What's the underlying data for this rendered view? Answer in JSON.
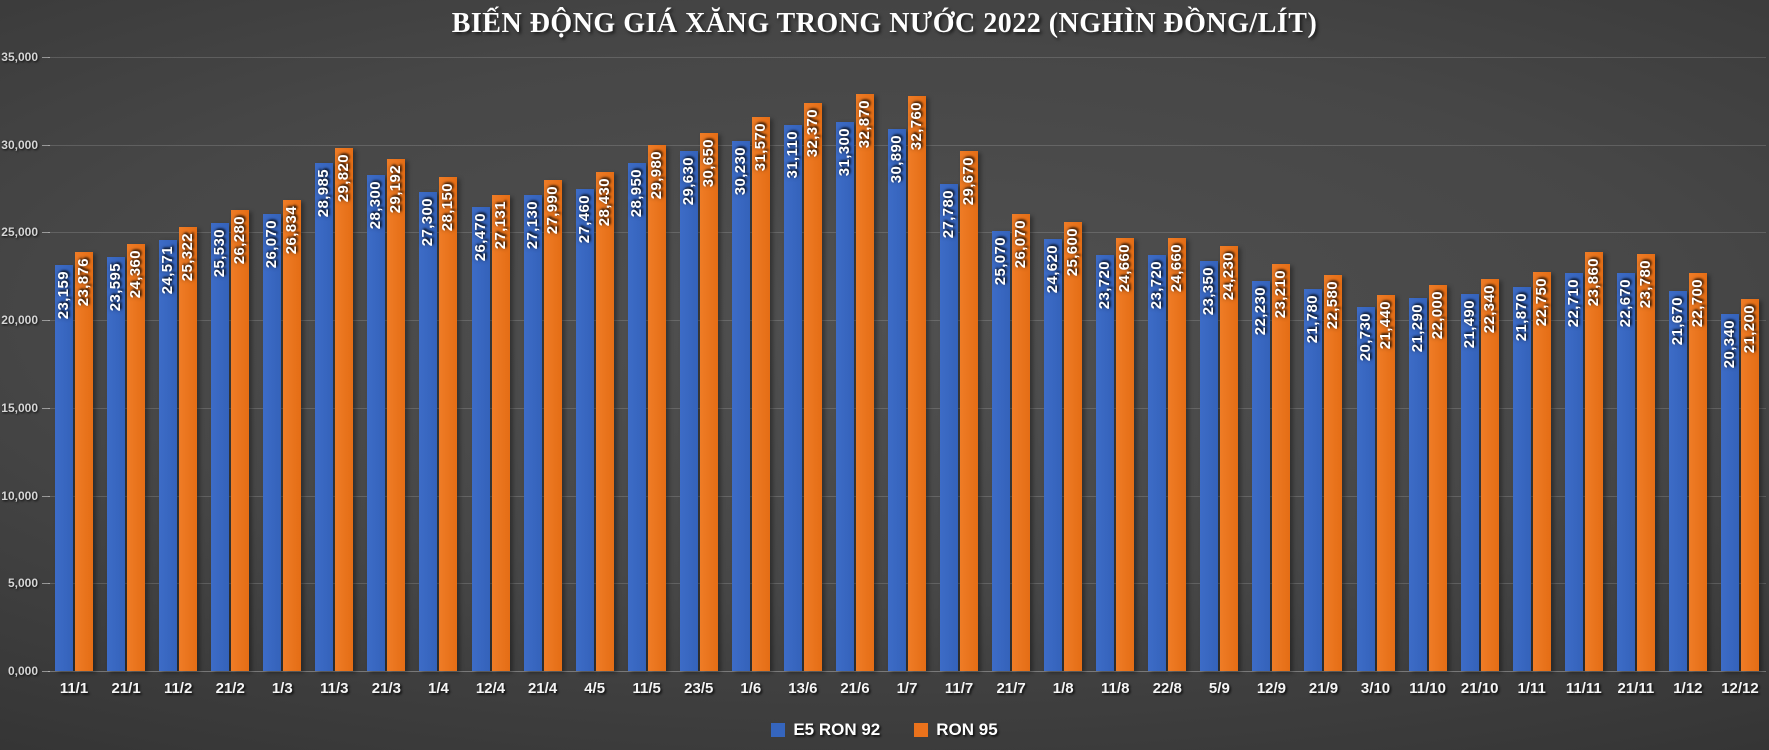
{
  "title": "BIẾN ĐỘNG GIÁ XĂNG TRONG NƯỚC 2022 (NGHÌN ĐỒNG/LÍT)",
  "chart_data": {
    "type": "bar",
    "title": "BIẾN ĐỘNG GIÁ XĂNG TRONG NƯỚC 2022 (NGHÌN ĐỒNG/LÍT)",
    "categories": [
      "11/1",
      "21/1",
      "11/2",
      "21/2",
      "1/3",
      "11/3",
      "21/3",
      "1/4",
      "12/4",
      "21/4",
      "4/5",
      "11/5",
      "23/5",
      "1/6",
      "13/6",
      "21/6",
      "1/7",
      "11/7",
      "21/7",
      "1/8",
      "11/8",
      "22/8",
      "5/9",
      "12/9",
      "21/9",
      "3/10",
      "11/10",
      "21/10",
      "1/11",
      "11/11",
      "21/11",
      "1/12",
      "12/12"
    ],
    "series": [
      {
        "name": "E5 RON 92",
        "color": "#3565BD",
        "values": [
          23159,
          23595,
          24571,
          25530,
          26070,
          28985,
          28300,
          27300,
          26470,
          27130,
          27460,
          28950,
          29630,
          30230,
          31110,
          31300,
          30890,
          27780,
          25070,
          24620,
          23720,
          23720,
          23350,
          22230,
          21780,
          20730,
          21290,
          21490,
          21870,
          22710,
          22670,
          21670,
          20340
        ]
      },
      {
        "name": "RON 95",
        "color": "#EA721C",
        "values": [
          23876,
          24360,
          25322,
          26280,
          26834,
          29820,
          29192,
          28150,
          27131,
          27990,
          28430,
          29980,
          30650,
          31570,
          32370,
          32870,
          32760,
          29670,
          26070,
          25600,
          24660,
          24660,
          24230,
          23210,
          22580,
          21440,
          22000,
          22340,
          22750,
          23860,
          23780,
          22700,
          21200
        ]
      }
    ],
    "ylim": [
      0,
      35000
    ],
    "ytick_step": 5000,
    "ytick_labels": [
      "0,000",
      "5,000",
      "10,000",
      "15,000",
      "20,000",
      "25,000",
      "30,000",
      "35,000"
    ],
    "grid": true,
    "legend_position": "bottom",
    "data_labels": "vertical, thousands comma format, inside end of bars"
  },
  "legend": {
    "items": [
      {
        "label": "E5 RON 92",
        "color": "#3565BD"
      },
      {
        "label": "RON 95",
        "color": "#EA721C"
      }
    ]
  }
}
